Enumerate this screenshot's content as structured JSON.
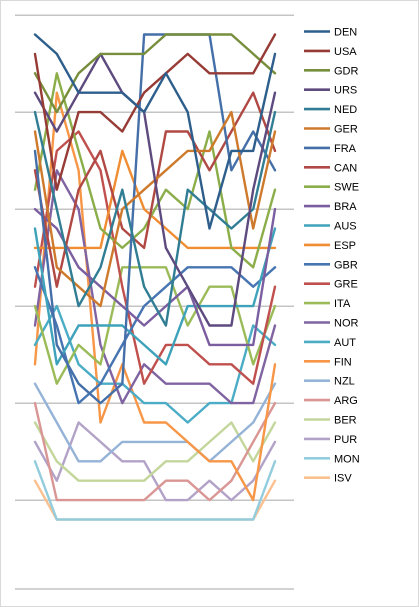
{
  "chart_data": {
    "type": "line",
    "title": "",
    "xlabel": "",
    "ylabel": "",
    "x": [
      1,
      2,
      3,
      4,
      5,
      6,
      7,
      8,
      9,
      10,
      11,
      12
    ],
    "ylim": [
      -26,
      0
    ],
    "grid": true,
    "legend": "right",
    "series": [
      {
        "name": "DEN",
        "color": "#2E5F8C",
        "values": [
          -1,
          -2,
          -4,
          -4,
          -4,
          -5,
          -3,
          -5,
          -11,
          -7,
          -7,
          -2
        ]
      },
      {
        "name": "USA",
        "color": "#963B35",
        "values": [
          -2,
          -9,
          -5,
          -5,
          -6,
          -4,
          -3,
          -2,
          -3,
          -3,
          -3,
          -1
        ]
      },
      {
        "name": "GDR",
        "color": "#778E3C",
        "values": [
          -3,
          -5,
          -3,
          -2,
          -2,
          -2,
          -1,
          -1,
          -1,
          -1,
          -2,
          -3
        ]
      },
      {
        "name": "URS",
        "color": "#5D4A7E",
        "values": [
          -4,
          -6,
          -4,
          -2,
          -4,
          -5,
          -12,
          -14,
          -16,
          -16,
          -9,
          -4
        ]
      },
      {
        "name": "NED",
        "color": "#317E94",
        "values": [
          -5,
          -10,
          -15,
          -13,
          -9,
          -14,
          -16,
          -9,
          -10,
          -11,
          -10,
          -5
        ]
      },
      {
        "name": "GER",
        "color": "#CE7A2C",
        "values": [
          -6,
          -13,
          -14,
          -15,
          -10,
          -9,
          -8,
          -7,
          -7,
          -5,
          -11,
          -6
        ]
      },
      {
        "name": "FRA",
        "color": "#456FA8",
        "values": [
          -7,
          -17,
          -19,
          -20,
          -19,
          -1,
          -1,
          -1,
          -1,
          -8,
          -6,
          -8
        ]
      },
      {
        "name": "CAN",
        "color": "#B04844",
        "values": [
          -8,
          -14,
          -9,
          -7,
          -11,
          -12,
          -6,
          -6,
          -8,
          -6,
          -4,
          -7
        ]
      },
      {
        "name": "SWE",
        "color": "#8BAE4A",
        "values": [
          -9,
          -3,
          -7,
          -11,
          -12,
          -11,
          -9,
          -10,
          -6,
          -12,
          -13,
          -9
        ]
      },
      {
        "name": "BRA",
        "color": "#7B5E9F",
        "values": [
          -10,
          -11,
          -13,
          -14,
          -15,
          -16,
          -15,
          -14,
          -17,
          -17,
          -17,
          -10
        ]
      },
      {
        "name": "AUS",
        "color": "#3EA2BB",
        "values": [
          -11,
          -18,
          -16,
          -16,
          -16,
          -17,
          -18,
          -15,
          -15,
          -15,
          -15,
          -11
        ]
      },
      {
        "name": "ESP",
        "color": "#F08D33",
        "values": [
          -12,
          -12,
          -12,
          -12,
          -7,
          -10,
          -11,
          -12,
          -12,
          -12,
          -12,
          -12
        ]
      },
      {
        "name": "GBR",
        "color": "#4675B2",
        "values": [
          -13,
          -16,
          -20,
          -19,
          -17,
          -15,
          -14,
          -13,
          -13,
          -13,
          -14,
          -13
        ]
      },
      {
        "name": "GRE",
        "color": "#C0504D",
        "values": [
          -14,
          -7,
          -6,
          -8,
          -14,
          -19,
          -17,
          -17,
          -18,
          -18,
          -19,
          -14
        ]
      },
      {
        "name": "ITA",
        "color": "#9BBB59",
        "values": [
          -15,
          -19,
          -17,
          -18,
          -13,
          -13,
          -13,
          -16,
          -14,
          -14,
          -18,
          -15
        ]
      },
      {
        "name": "NOR",
        "color": "#8064A2",
        "values": [
          -16,
          -8,
          -10,
          -17,
          -20,
          -18,
          -19,
          -19,
          -19,
          -20,
          -20,
          -16
        ]
      },
      {
        "name": "AUT",
        "color": "#4BACC6",
        "values": [
          -17,
          -15,
          -18,
          -19,
          -19,
          -20,
          -20,
          -21,
          -20,
          -20,
          -16,
          -17
        ]
      },
      {
        "name": "FIN",
        "color": "#F79646",
        "values": [
          -18,
          -4,
          -8,
          -21,
          -18,
          -21,
          -21,
          -22,
          -23,
          -23,
          -25,
          -18
        ]
      },
      {
        "name": "NZL",
        "color": "#95B3D7",
        "values": [
          -19,
          -21,
          -23,
          -23,
          -22,
          -22,
          -22,
          -22,
          -23,
          -22,
          -21,
          -19
        ]
      },
      {
        "name": "ARG",
        "color": "#D99694",
        "values": [
          -20,
          -25,
          -25,
          -25,
          -25,
          -25,
          -24,
          -24,
          -25,
          -24,
          -22,
          -20
        ]
      },
      {
        "name": "BER",
        "color": "#C3D69B",
        "values": [
          -21,
          -23,
          -24,
          -24,
          -24,
          -24,
          -23,
          -23,
          -22,
          -21,
          -23,
          -21
        ]
      },
      {
        "name": "PUR",
        "color": "#B3A2C7",
        "values": [
          -22,
          -24,
          -21,
          -22,
          -23,
          -23,
          -25,
          -25,
          -24,
          -25,
          -24,
          -22
        ]
      },
      {
        "name": "MON",
        "color": "#93CDDD",
        "values": [
          -23,
          -26,
          -26,
          -26,
          -26,
          -26,
          -26,
          -26,
          -26,
          -26,
          -26,
          -23
        ]
      },
      {
        "name": "ISV",
        "color": "#FAC090",
        "values": [
          -24,
          -26,
          -26,
          -26,
          -26,
          -26,
          -26,
          -26,
          -26,
          -26,
          -26,
          -24
        ]
      }
    ]
  }
}
